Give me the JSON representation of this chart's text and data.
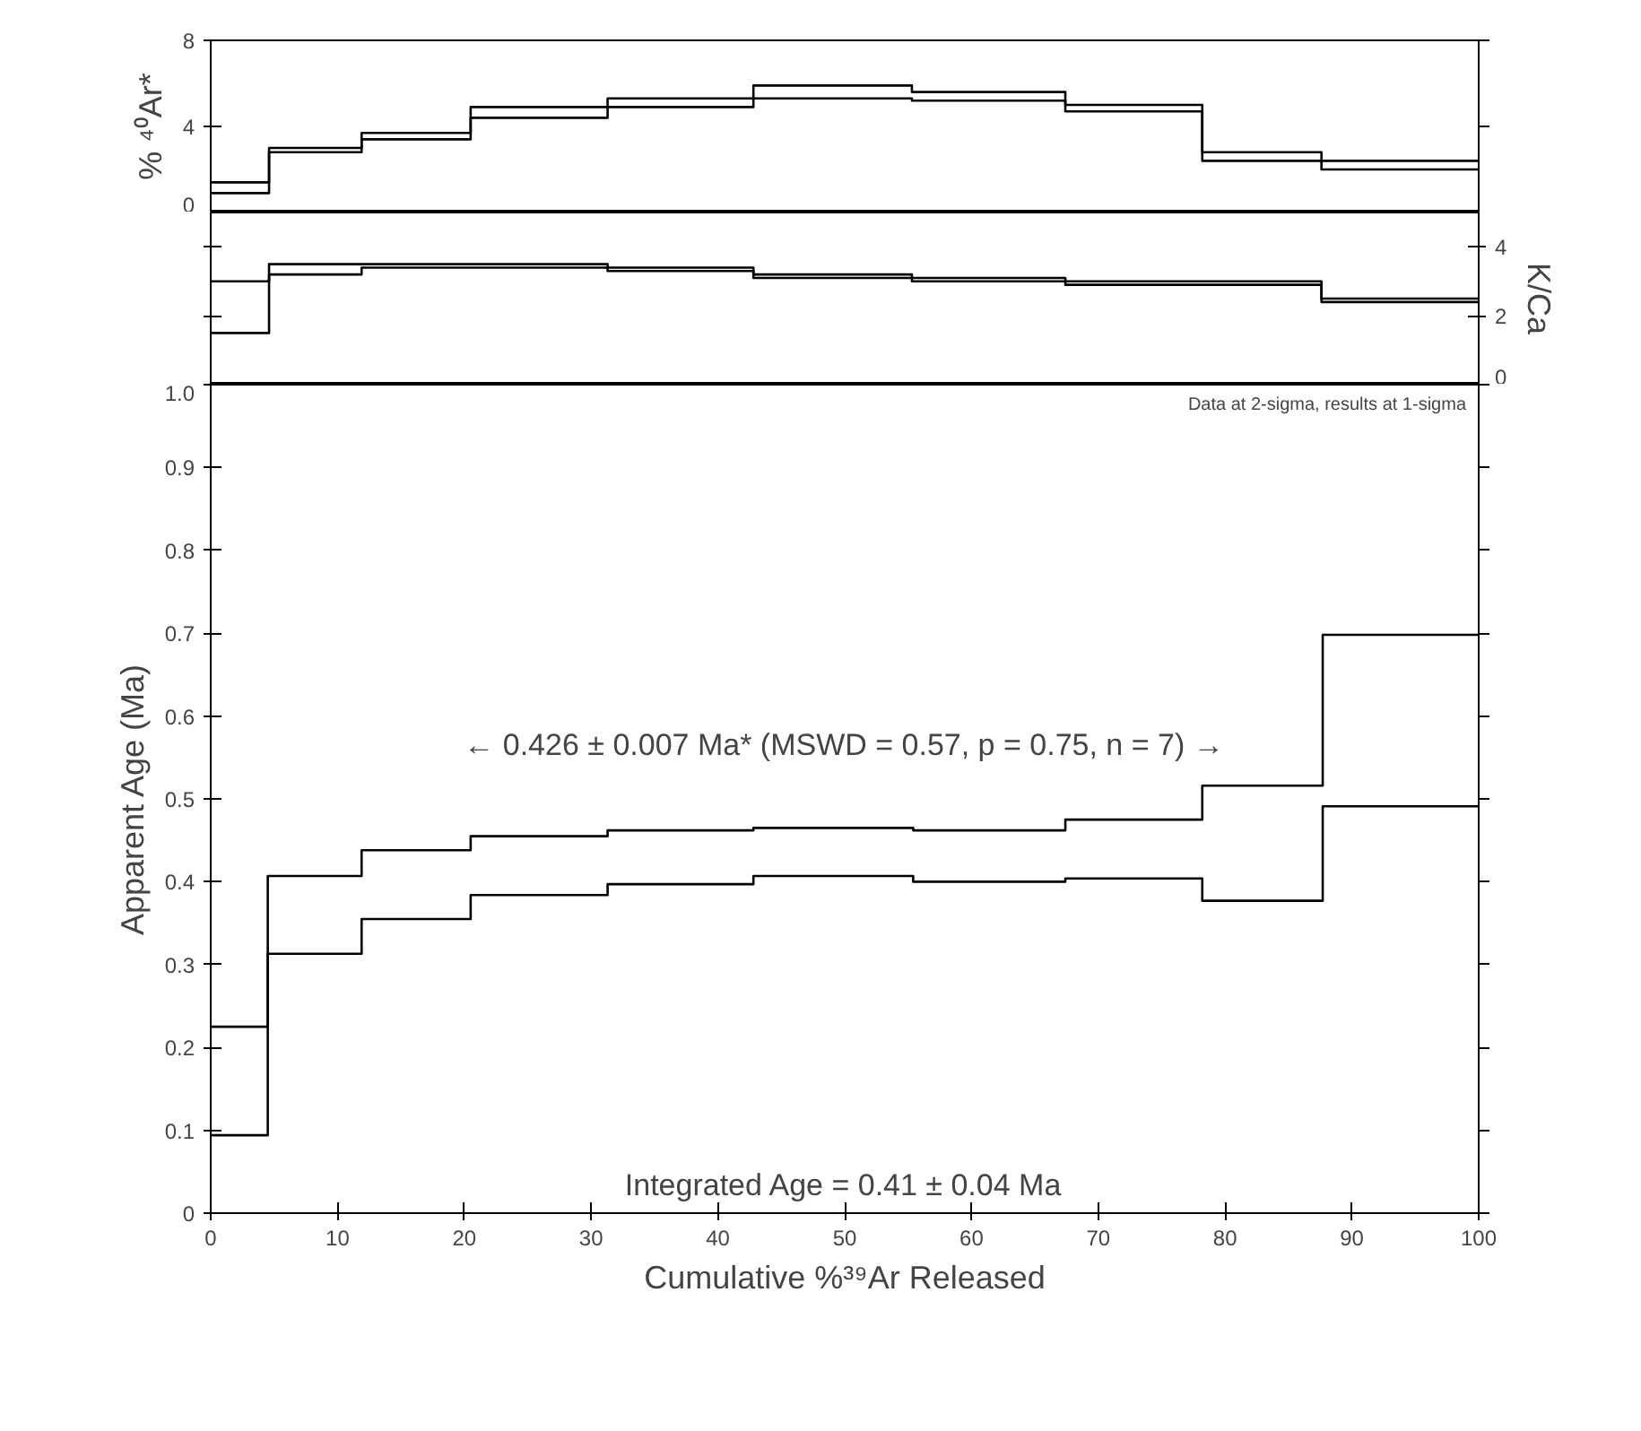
{
  "chart_data": [
    {
      "type": "step",
      "ylabel": "% ⁴⁰Ar*",
      "xlim": [
        0,
        100
      ],
      "xticks": [
        0,
        10,
        20,
        30,
        40,
        50,
        60,
        70,
        80,
        90,
        100
      ],
      "ylim": [
        0,
        8
      ],
      "yticks": [
        0,
        4,
        8
      ],
      "tick_labels": "y",
      "x": [
        0,
        4.6,
        11.9,
        20.5,
        31.3,
        42.8,
        55.3,
        67.4,
        78.2,
        87.6,
        100
      ],
      "series": [
        {
          "color": "#000000",
          "values": [
            1.4,
            3.0,
            3.7,
            4.9,
            5.3,
            5.9,
            5.6,
            5.0,
            2.8,
            2.4,
            2.4
          ]
        },
        {
          "color": "#000000",
          "values": [
            0.9,
            2.8,
            3.4,
            4.4,
            4.9,
            5.3,
            5.2,
            4.7,
            2.4,
            2.0,
            2.0
          ]
        }
      ]
    },
    {
      "type": "step",
      "y2label": "K/Ca",
      "xlim": [
        0,
        100
      ],
      "xticks": [
        0,
        10,
        20,
        30,
        40,
        50,
        60,
        70,
        80,
        90,
        100
      ],
      "y2lim": [
        0,
        5
      ],
      "y2ticks": [
        0,
        2,
        4
      ],
      "tick_labels": "y",
      "x": [
        0,
        4.6,
        11.9,
        20.5,
        31.3,
        42.8,
        55.3,
        67.4,
        78.2,
        87.6,
        100
      ],
      "series": [
        {
          "color": "#000000",
          "axis": "y2",
          "values": [
            3.0,
            3.5,
            3.5,
            3.5,
            3.4,
            3.2,
            3.1,
            3.0,
            3.0,
            2.5,
            2.5
          ]
        },
        {
          "color": "#000000",
          "axis": "y2",
          "values": [
            1.5,
            3.2,
            3.4,
            3.4,
            3.3,
            3.1,
            3.0,
            2.9,
            2.9,
            2.4,
            2.4
          ]
        }
      ]
    },
    {
      "type": "step",
      "xlabel": "Cumulative %³⁹Ar Released",
      "ylabel": "Apparent Age (Ma)",
      "xlim": [
        0,
        100
      ],
      "xticks": [
        0,
        10,
        20,
        30,
        40,
        50,
        60,
        70,
        80,
        90,
        100
      ],
      "ylim": [
        0,
        1.0
      ],
      "yticks": [
        0,
        0.1,
        0.2,
        0.3,
        0.4,
        0.5,
        0.6,
        0.7,
        0.8,
        0.9,
        {
          "value": 1.0,
          "label": "1.0"
        }
      ],
      "x": [
        0,
        4.5,
        11.9,
        20.5,
        31.3,
        42.8,
        55.4,
        67.4,
        78.2,
        87.7,
        100
      ],
      "series": [
        {
          "color": "#000000",
          "values": [
            0.225,
            0.407,
            0.438,
            0.455,
            0.462,
            0.465,
            0.462,
            0.475,
            0.516,
            0.698,
            0.698
          ]
        },
        {
          "color": "#000000",
          "values": [
            0.094,
            0.313,
            0.355,
            0.384,
            0.397,
            0.407,
            0.4,
            0.404,
            0.377,
            0.491,
            0.491
          ]
        }
      ],
      "annotations": [
        "Data at 2-sigma, results at 1-sigma",
        "Integrated Age = 0.41 ± 0.04 Ma",
        "← 0.426 ± 0.007 Ma* (MSWD = 0.57, p = 0.75, n = 7) →"
      ]
    }
  ]
}
